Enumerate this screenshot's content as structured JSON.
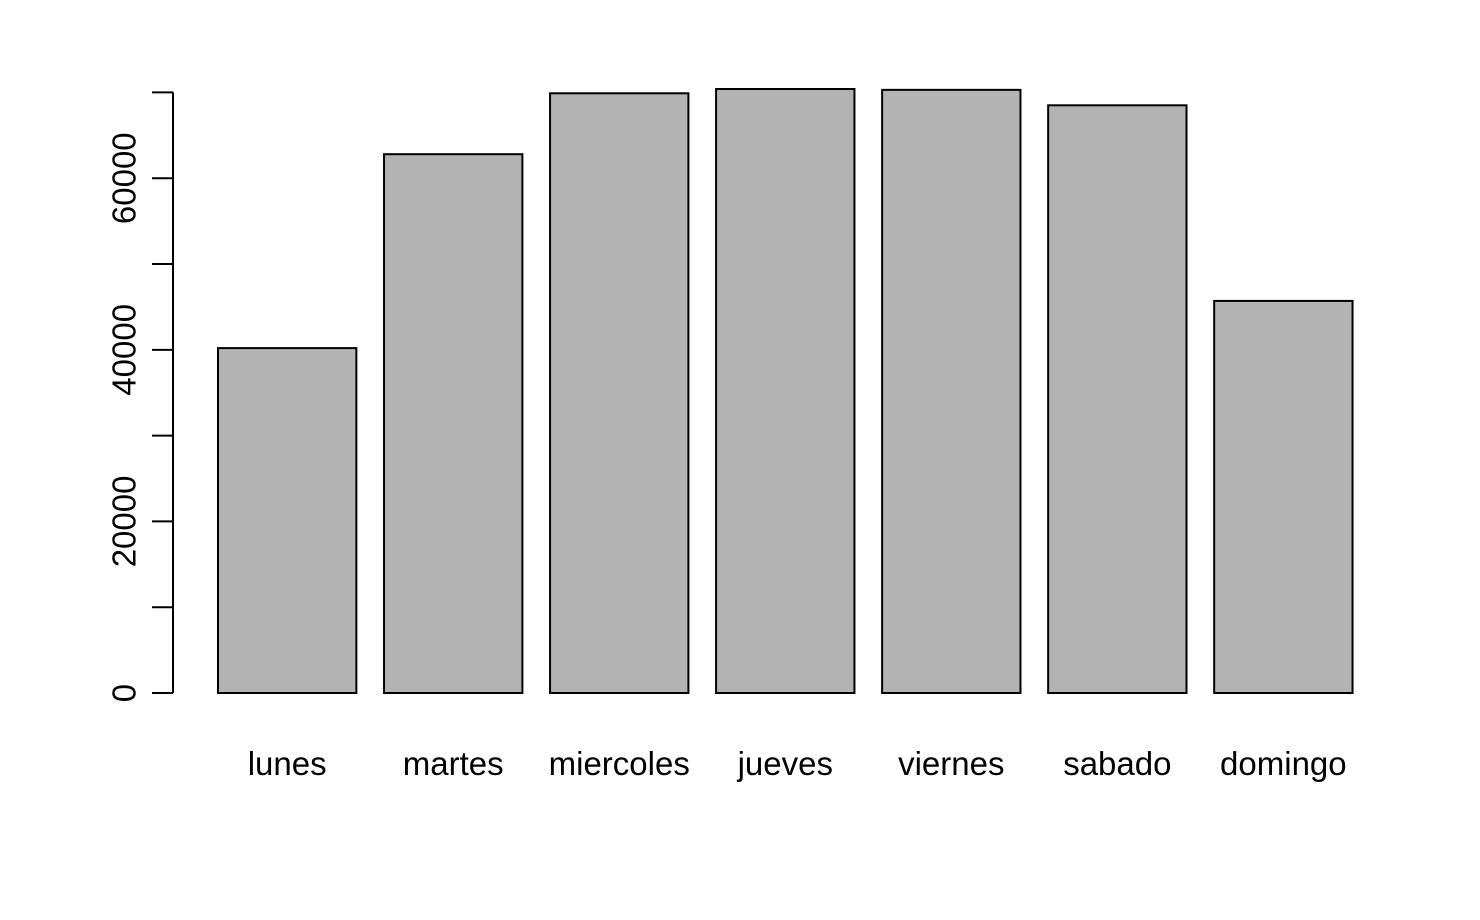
{
  "chart_data": {
    "type": "bar",
    "title": "",
    "xlabel": "",
    "ylabel": "",
    "categories": [
      "lunes",
      "martes",
      "miercoles",
      "jueves",
      "viernes",
      "sabado",
      "domingo"
    ],
    "values": [
      40200,
      62800,
      69900,
      70400,
      70300,
      68500,
      45700
    ],
    "ylim": [
      0,
      70400
    ],
    "yticks": [
      0,
      10000,
      20000,
      30000,
      40000,
      50000,
      60000,
      70000
    ],
    "ytick_labels": [
      "0",
      "",
      "20000",
      "",
      "40000",
      "",
      "60000",
      ""
    ],
    "grid": false,
    "legend": "none",
    "bar_color": "#b3b3b3",
    "edge_color": "#000000"
  }
}
